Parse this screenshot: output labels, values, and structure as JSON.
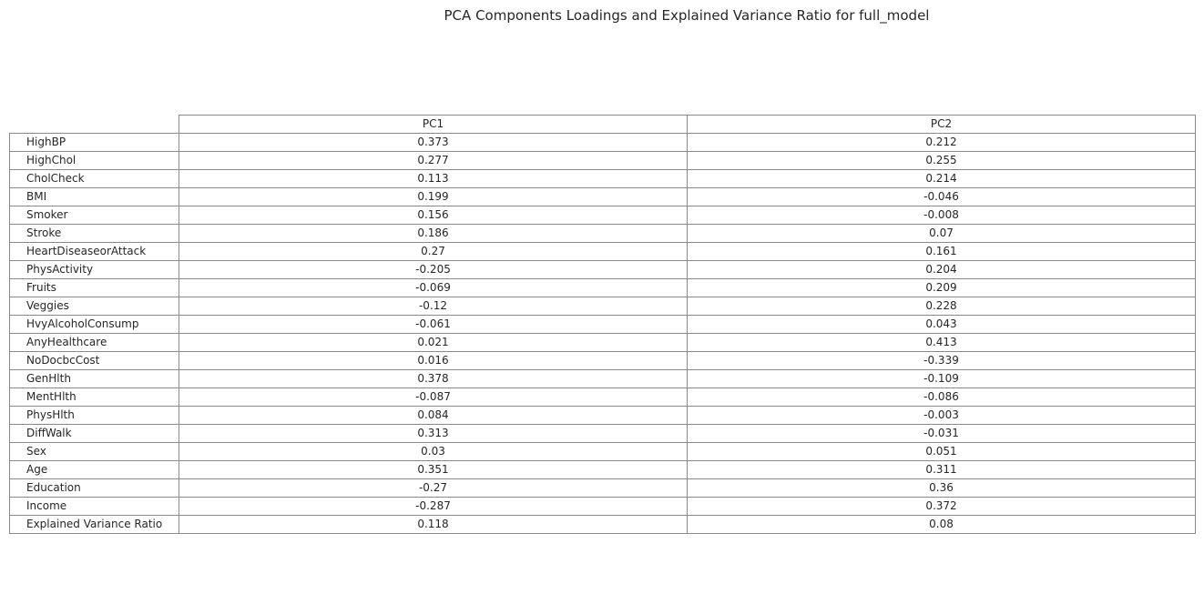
{
  "chart_data": {
    "type": "table",
    "title": "PCA Components Loadings and Explained Variance Ratio for full_model",
    "columns": [
      "PC1",
      "PC2"
    ],
    "rows": [
      {
        "label": "HighBP",
        "values": [
          "0.373",
          "0.212"
        ]
      },
      {
        "label": "HighChol",
        "values": [
          "0.277",
          "0.255"
        ]
      },
      {
        "label": "CholCheck",
        "values": [
          "0.113",
          "0.214"
        ]
      },
      {
        "label": "BMI",
        "values": [
          "0.199",
          "-0.046"
        ]
      },
      {
        "label": "Smoker",
        "values": [
          "0.156",
          "-0.008"
        ]
      },
      {
        "label": "Stroke",
        "values": [
          "0.186",
          "0.07"
        ]
      },
      {
        "label": "HeartDiseaseorAttack",
        "values": [
          "0.27",
          "0.161"
        ]
      },
      {
        "label": "PhysActivity",
        "values": [
          "-0.205",
          "0.204"
        ]
      },
      {
        "label": "Fruits",
        "values": [
          "-0.069",
          "0.209"
        ]
      },
      {
        "label": "Veggies",
        "values": [
          "-0.12",
          "0.228"
        ]
      },
      {
        "label": "HvyAlcoholConsump",
        "values": [
          "-0.061",
          "0.043"
        ]
      },
      {
        "label": "AnyHealthcare",
        "values": [
          "0.021",
          "0.413"
        ]
      },
      {
        "label": "NoDocbcCost",
        "values": [
          "0.016",
          "-0.339"
        ]
      },
      {
        "label": "GenHlth",
        "values": [
          "0.378",
          "-0.109"
        ]
      },
      {
        "label": "MentHlth",
        "values": [
          "-0.087",
          "-0.086"
        ]
      },
      {
        "label": "PhysHlth",
        "values": [
          "0.084",
          "-0.003"
        ]
      },
      {
        "label": "DiffWalk",
        "values": [
          "0.313",
          "-0.031"
        ]
      },
      {
        "label": "Sex",
        "values": [
          "0.03",
          "0.051"
        ]
      },
      {
        "label": "Age",
        "values": [
          "0.351",
          "0.311"
        ]
      },
      {
        "label": "Education",
        "values": [
          "-0.27",
          "0.36"
        ]
      },
      {
        "label": "Income",
        "values": [
          "-0.287",
          "0.372"
        ]
      },
      {
        "label": "Explained Variance Ratio",
        "values": [
          "0.118",
          "0.08"
        ]
      }
    ],
    "border_color": "#8a8a8a",
    "text_color": "#262626"
  }
}
